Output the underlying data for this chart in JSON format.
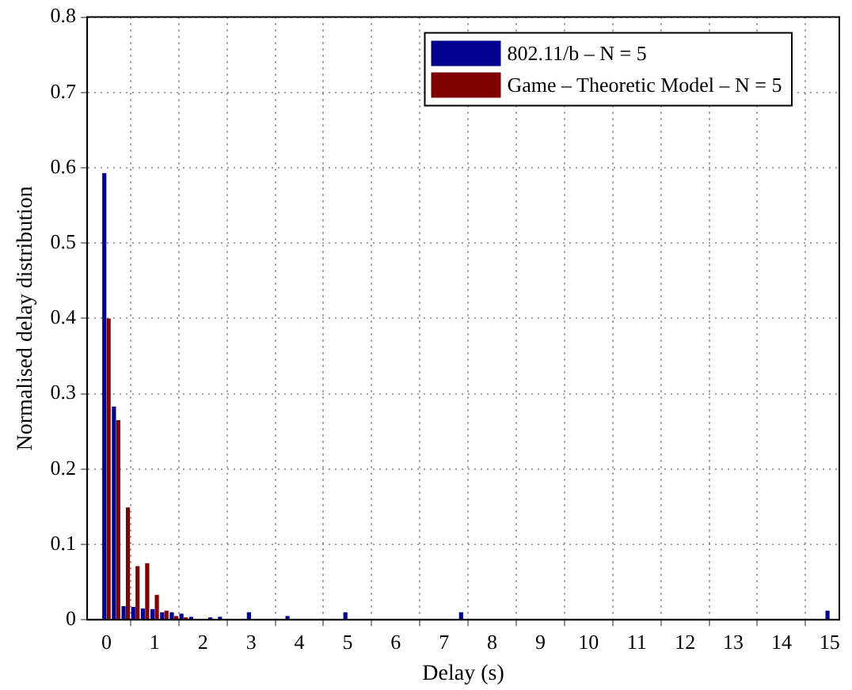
{
  "chart_data": {
    "type": "bar",
    "xlabel": "Delay (s)",
    "ylabel": "Normalised delay distribution",
    "xlim": [
      -0.4,
      15.2
    ],
    "xticks": [
      0,
      1,
      2,
      3,
      4,
      5,
      6,
      7,
      8,
      9,
      10,
      11,
      12,
      13,
      14,
      15
    ],
    "ylim": [
      0,
      0.8
    ],
    "yticks": [
      0,
      0.1,
      0.2,
      0.3,
      0.4,
      0.5,
      0.6,
      0.7,
      0.8
    ],
    "grid": true,
    "legend": "top right",
    "series": [
      {
        "name": "802.11/b – N = 5",
        "color": "#00008f",
        "x": [
          0,
          0.2,
          0.4,
          0.6,
          0.8,
          1.0,
          1.2,
          1.4,
          1.6,
          1.8,
          2.2,
          2.4,
          3.0,
          3.8,
          5.0,
          7.4,
          15.0
        ],
        "values": [
          0.593,
          0.283,
          0.018,
          0.017,
          0.015,
          0.014,
          0.01,
          0.01,
          0.008,
          0.004,
          0.003,
          0.004,
          0.01,
          0.005,
          0.01,
          0.01,
          0.012
        ]
      },
      {
        "name": "Game – Theoretic Model – N = 5",
        "color": "#800000",
        "x": [
          0,
          0.2,
          0.4,
          0.6,
          0.8,
          1.0,
          1.2,
          1.4,
          1.6
        ],
        "values": [
          0.4,
          0.265,
          0.149,
          0.071,
          0.075,
          0.033,
          0.012,
          0.005,
          0.003
        ]
      }
    ]
  }
}
